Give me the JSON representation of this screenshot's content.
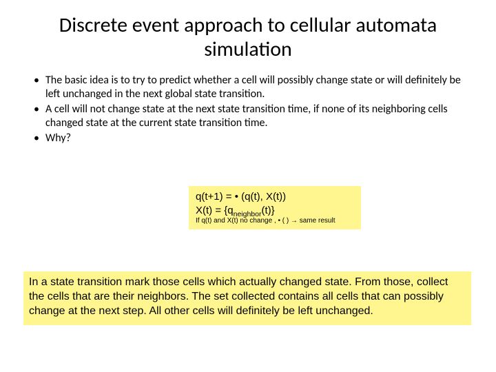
{
  "title": "Discrete event approach to cellular automata simulation",
  "bullets": [
    "The basic idea is to try to predict whether a cell will possibly change state or will definitely be left unchanged in the next global state transition.",
    "A cell will not change state at the next state transition time, if none of its neighboring cells changed state at the current state transition time.",
    "Why?"
  ],
  "formula": {
    "line1_pre": "q(t+1) = ",
    "line1_mid": "•",
    "line1_post": " (q(t), X(t))",
    "line2_pre": "X(t) = {q",
    "line2_sub": "neighbor",
    "line2_post": "(t)}",
    "line3": "If q(t) and X(t) no change , • ( ) → same result",
    "bg": "#fff68f"
  },
  "explanation": {
    "text": "In a state transition mark those cells which actually changed state. From those, collect the cells that are their neighbors. The set collected contains all cells that can possibly change at the next step. All other cells will definitely be left unchanged.",
    "bg": "#fff68f"
  },
  "colors": {
    "background": "#ffffff",
    "text": "#000000",
    "highlight": "#fff68f"
  }
}
